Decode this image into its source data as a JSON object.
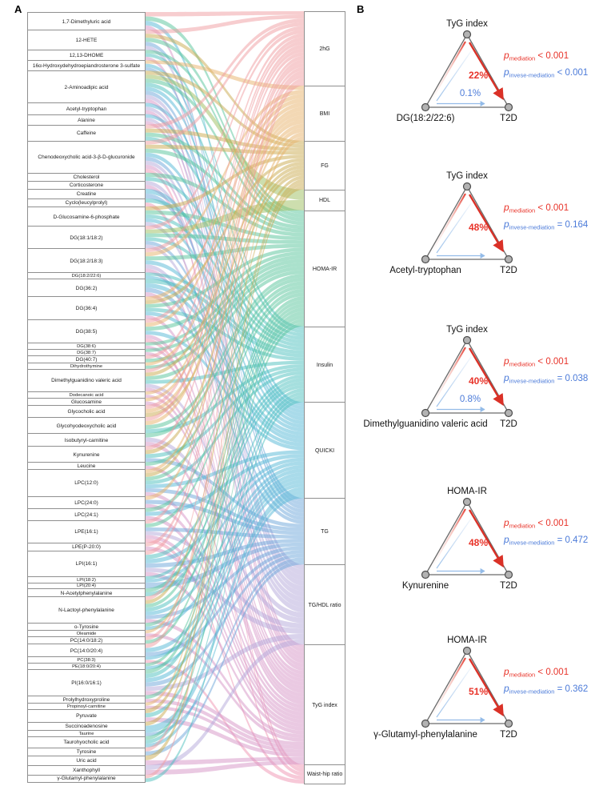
{
  "figure": {
    "panel_a_label": "A",
    "panel_b_label": "B"
  },
  "colors": {
    "mediation_red": "#E8342A",
    "inverse_blue": "#4C7BD9",
    "arrow_blue": "#93BBE8",
    "node_fill": "#B3B3B3",
    "node_stroke": "#4C4C4C",
    "triangle_edge": "#6B6B6B",
    "box_border": "#8F8F8F"
  },
  "chart_data": {
    "type": "sankey",
    "title": "",
    "left_axis_label": "metabolites",
    "right_axis_label": "clinical measures",
    "left_nodes": [
      {
        "label": "1,7-Dimethyluric acid",
        "size": 22
      },
      {
        "label": "12-HETE",
        "size": 25
      },
      {
        "label": "12,13-DHOME",
        "size": 13
      },
      {
        "label": "16α-Hydroxydehydroepiandrosterone 3-sulfate",
        "size": 13
      },
      {
        "label": "2-Aminoadipic acid",
        "size": 40
      },
      {
        "label": "Acetyl-tryptophan",
        "size": 14
      },
      {
        "label": "Alanine",
        "size": 13
      },
      {
        "label": "Caffeine",
        "size": 20
      },
      {
        "label": "Chenodeoxycholic acid-3-β-D-glucuronide",
        "size": 40
      },
      {
        "label": "Cholesterol",
        "size": 10
      },
      {
        "label": "Corticosterone",
        "size": 10
      },
      {
        "label": "Creatine",
        "size": 12
      },
      {
        "label": "Cyclo(leucylprolyl)",
        "size": 10
      },
      {
        "label": "D-Glucosamine-6-phosphate",
        "size": 24
      },
      {
        "label": "DG(18:1/18:2)",
        "size": 28
      },
      {
        "label": "DG(18:2/18:3)",
        "size": 30
      },
      {
        "label": "DG(18:2/22:6)",
        "size": 8
      },
      {
        "label": "DG(36:2)",
        "size": 22
      },
      {
        "label": "DG(36:4)",
        "size": 28
      },
      {
        "label": "DG(38:5)",
        "size": 29
      },
      {
        "label": "DG(38:6)",
        "size": 8
      },
      {
        "label": "DG(38:7)",
        "size": 8
      },
      {
        "label": "DG(40:7)",
        "size": 9
      },
      {
        "label": "Dihydrothymine",
        "size": 8
      },
      {
        "label": "Dimethylguanidino valeric acid",
        "size": 28
      },
      {
        "label": "Dodecanoic acid",
        "size": 8
      },
      {
        "label": "Glucosamine",
        "size": 9
      },
      {
        "label": "Glycocholic acid",
        "size": 15
      },
      {
        "label": "Glycohyodeoxycholic acid",
        "size": 20
      },
      {
        "label": "Isobutyryl-carnitine",
        "size": 16
      },
      {
        "label": "Kynurenine",
        "size": 20
      },
      {
        "label": "Leucine",
        "size": 9
      },
      {
        "label": "LPC(12:0)",
        "size": 33
      },
      {
        "label": "LPC(24:0)",
        "size": 15
      },
      {
        "label": "LPC(24:1)",
        "size": 15
      },
      {
        "label": "LPE(16:1)",
        "size": 28
      },
      {
        "label": "LPE(P-20:0)",
        "size": 10
      },
      {
        "label": "LPI(16:1)",
        "size": 32
      },
      {
        "label": "LPI(18:2)",
        "size": 8
      },
      {
        "label": "LPI(20:4)",
        "size": 7
      },
      {
        "label": "N-Acetylphenylalanine",
        "size": 10
      },
      {
        "label": "N-Lactoyl-phenylalanine",
        "size": 33
      },
      {
        "label": "o-Tyrosine",
        "size": 9
      },
      {
        "label": "Oleamide",
        "size": 8
      },
      {
        "label": "PC(14:0/18:2)",
        "size": 9
      },
      {
        "label": "PC(14:0/20:4)",
        "size": 16
      },
      {
        "label": "PC(38:3)",
        "size": 8
      },
      {
        "label": "PE(18:0/20:4)",
        "size": 8
      },
      {
        "label": "PI(16:0/16:1)",
        "size": 32
      },
      {
        "label": "Prolylhydroxyproline",
        "size": 9
      },
      {
        "label": "Propinoyl-carnitine",
        "size": 8
      },
      {
        "label": "Pyruvate",
        "size": 16
      },
      {
        "label": "Succinoadenosine",
        "size": 10
      },
      {
        "label": "Taurine",
        "size": 8
      },
      {
        "label": "Taurohyocholic acid",
        "size": 14
      },
      {
        "label": "Tyrosine",
        "size": 10
      },
      {
        "label": "Uric acid",
        "size": 12
      },
      {
        "label": "Xanthophyll",
        "size": 12
      },
      {
        "label": "γ-Glutamyl-phenylalanine",
        "size": 9
      }
    ],
    "right_nodes": [
      {
        "label": "2hG",
        "size": 93,
        "color": "#F09B9F"
      },
      {
        "label": "BMI",
        "size": 69,
        "color": "#E7B269"
      },
      {
        "label": "FG",
        "size": 61,
        "color": "#C9A94E"
      },
      {
        "label": "HDL",
        "size": 26,
        "color": "#9CBE5E"
      },
      {
        "label": "HOMA-IR",
        "size": 145,
        "color": "#56C39A"
      },
      {
        "label": "Insulin",
        "size": 95,
        "color": "#4BC0BE"
      },
      {
        "label": "QUICKI",
        "size": 120,
        "color": "#54B8D6"
      },
      {
        "label": "TG",
        "size": 83,
        "color": "#6CA6D9"
      },
      {
        "label": "TG/HDL ratio",
        "size": 100,
        "color": "#B4A7DA"
      },
      {
        "label": "TyG index",
        "size": 150,
        "color": "#D593C6"
      },
      {
        "label": "Waist-hip ratio",
        "size": 24,
        "color": "#EF93B2"
      }
    ],
    "links_note": "ribbons connect each metabolite to associated clinical measures; ribbon color follows the right-hand measure"
  },
  "mediation": {
    "p_symbol": "p",
    "p_mediation_subscript": "mediation",
    "p_inverse_subscript": "invese-mediation",
    "diagrams": [
      {
        "mediator": "TyG index",
        "exposure": "DG(18:2/22:6)",
        "outcome": "T2D",
        "mediated_percent": "22%",
        "inverse_percent": "0.1%",
        "p_mediation_value": "< 0.001",
        "p_inverse_value": "< 0.001"
      },
      {
        "mediator": "TyG index",
        "exposure": "Acetyl-tryptophan",
        "outcome": "T2D",
        "mediated_percent": "48%",
        "inverse_percent": null,
        "p_mediation_value": "< 0.001",
        "p_inverse_value": "= 0.164"
      },
      {
        "mediator": "TyG index",
        "exposure": "Dimethylguanidino valeric acid",
        "outcome": "T2D",
        "mediated_percent": "40%",
        "inverse_percent": "0.8%",
        "p_mediation_value": "< 0.001",
        "p_inverse_value": "= 0.038"
      },
      {
        "mediator": "HOMA-IR",
        "exposure": "Kynurenine",
        "outcome": "T2D",
        "mediated_percent": "48%",
        "inverse_percent": null,
        "p_mediation_value": "< 0.001",
        "p_inverse_value": "= 0.472"
      },
      {
        "mediator": "HOMA-IR",
        "exposure": "γ-Glutamyl-phenylalanine",
        "outcome": "T2D",
        "mediated_percent": "51%",
        "inverse_percent": null,
        "p_mediation_value": "< 0.001",
        "p_inverse_value": "= 0.362"
      }
    ]
  }
}
